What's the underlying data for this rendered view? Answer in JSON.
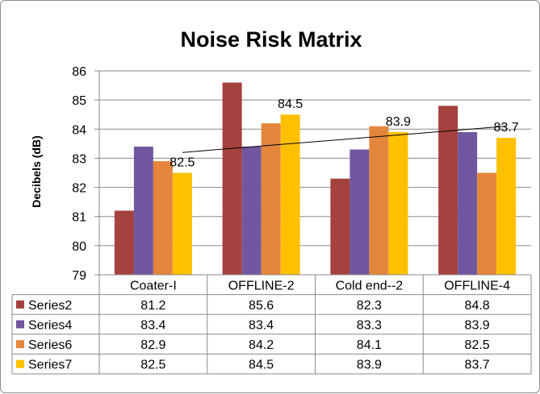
{
  "chart_data": {
    "type": "bar",
    "title": "Noise Risk Matrix",
    "ylabel": "Decibels (dB)",
    "ylim": [
      79,
      86
    ],
    "yticks": [
      79,
      80,
      81,
      82,
      83,
      84,
      85,
      86
    ],
    "grid": true,
    "categories": [
      "Coater-I",
      "OFFLINE-2",
      "Cold end--2",
      "OFFLINE-4"
    ],
    "series": [
      {
        "name": "Series2",
        "color": "#a5413e",
        "values": [
          81.2,
          85.6,
          82.3,
          84.8
        ]
      },
      {
        "name": "Series4",
        "color": "#7057a0",
        "values": [
          83.4,
          83.4,
          83.3,
          83.9
        ]
      },
      {
        "name": "Series6",
        "color": "#e5863d",
        "values": [
          82.9,
          84.2,
          84.1,
          82.5
        ]
      },
      {
        "name": "Series7",
        "color": "#ffc000",
        "values": [
          82.5,
          84.5,
          83.9,
          83.7
        ]
      }
    ],
    "data_labels": {
      "series": "Series7",
      "values": [
        "82.5",
        "84.5",
        "83.9",
        "83.7"
      ]
    },
    "trendline": {
      "series": "Series7",
      "type": "linear"
    },
    "data_table": true
  }
}
